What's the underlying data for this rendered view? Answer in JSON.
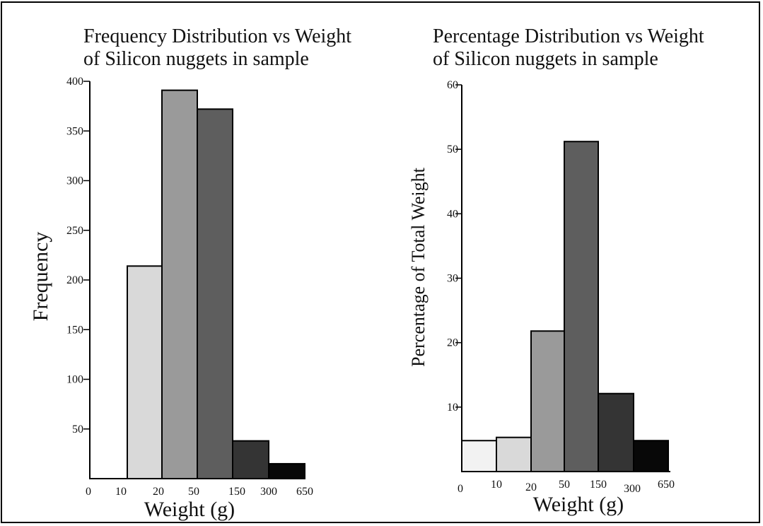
{
  "chart_data": [
    {
      "type": "bar",
      "title_lines": [
        "Frequency Distribution vs Weight",
        "of Silicon nuggets in sample"
      ],
      "xlabel": "Weight (g)",
      "ylabel": "Frequency",
      "x_edges": [
        "0",
        "10",
        "20",
        "50",
        "150",
        "300",
        "650"
      ],
      "categories": [
        "10-20",
        "20-50",
        "50-150",
        "150-300",
        "300-650"
      ],
      "values": [
        214,
        391,
        372,
        38,
        15
      ],
      "bar_colors": [
        "#d9d9d9",
        "#9a9a9a",
        "#5e5e5e",
        "#343434",
        "#080808"
      ],
      "yticks": [
        50,
        100,
        150,
        200,
        250,
        300,
        350,
        400
      ],
      "ylim": [
        0,
        400
      ],
      "grid": false,
      "legend": "none"
    },
    {
      "type": "bar",
      "title_lines": [
        "Percentage Distribution vs Weight",
        "of Silicon nuggets in sample"
      ],
      "xlabel": "Weight (g)",
      "ylabel": "Percentage of Total Weight",
      "x_edges": [
        "0",
        "10",
        "20",
        "50",
        "150",
        "300",
        "650"
      ],
      "categories": [
        "0-10",
        "10-20",
        "20-50",
        "50-150",
        "150-300",
        "300-650"
      ],
      "values": [
        4.8,
        5.3,
        21.8,
        51.2,
        12.1,
        4.8
      ],
      "bar_colors": [
        "#f2f2f2",
        "#d9d9d9",
        "#9a9a9a",
        "#5e5e5e",
        "#343434",
        "#080808"
      ],
      "yticks": [
        10,
        20,
        30,
        40,
        50,
        60
      ],
      "ylim": [
        0,
        60
      ],
      "grid": false,
      "legend": "none"
    }
  ]
}
